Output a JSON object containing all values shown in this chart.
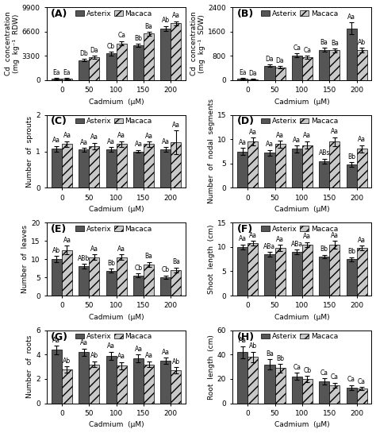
{
  "panels": [
    {
      "label": "(A)",
      "ylabel": "Cd  concentration\n(mg  kg⁻¹  RDW)",
      "xlabel": "Cadmium  (μM)",
      "ylim": [
        0,
        9900
      ],
      "yticks": [
        0,
        3300,
        6600,
        9900
      ],
      "categories": [
        0,
        50,
        100,
        150,
        200
      ],
      "asterix_values": [
        200,
        2700,
        3600,
        4700,
        7000
      ],
      "macaca_values": [
        200,
        3100,
        5000,
        6300,
        7700
      ],
      "asterix_errors": [
        80,
        150,
        250,
        200,
        350
      ],
      "macaca_errors": [
        80,
        180,
        300,
        280,
        300
      ],
      "asterix_labels": [
        "Ea",
        "Db",
        "Cb",
        "Bb",
        "Ab"
      ],
      "macaca_labels": [
        "Ea",
        "Da",
        "Ca",
        "Ba",
        "Aa"
      ]
    },
    {
      "label": "(B)",
      "ylabel": "Cd  concentration\n(mg  kg⁻¹  SDW)",
      "xlabel": "Cadmium  (μM)",
      "ylim": [
        0,
        2400
      ],
      "yticks": [
        0,
        800,
        1600,
        2400
      ],
      "categories": [
        0,
        50,
        100,
        150,
        200
      ],
      "asterix_values": [
        50,
        480,
        820,
        1000,
        1700
      ],
      "macaca_values": [
        30,
        420,
        760,
        980,
        980
      ],
      "asterix_errors": [
        15,
        40,
        60,
        70,
        200
      ],
      "macaca_errors": [
        10,
        35,
        50,
        60,
        80
      ],
      "asterix_labels": [
        "Ea",
        "Da",
        "Ca",
        "Ba",
        "Aa"
      ],
      "macaca_labels": [
        "Da",
        "Da",
        "Ca",
        "Ba",
        "Ab"
      ]
    },
    {
      "label": "(C)",
      "ylabel": "Number  of  sprouts",
      "xlabel": "Cadmium  (μM)",
      "ylim": [
        0,
        2
      ],
      "yticks": [
        0,
        1,
        2
      ],
      "categories": [
        0,
        50,
        100,
        150,
        200
      ],
      "asterix_values": [
        1.07,
        1.05,
        1.05,
        1.0,
        1.05
      ],
      "macaca_values": [
        1.2,
        1.15,
        1.2,
        1.2,
        1.25
      ],
      "asterix_errors": [
        0.08,
        0.05,
        0.07,
        0.04,
        0.07
      ],
      "macaca_errors": [
        0.08,
        0.09,
        0.08,
        0.07,
        0.32
      ],
      "asterix_labels": [
        "Aa",
        "Aa",
        "Aa",
        "Aa",
        "Aa"
      ],
      "macaca_labels": [
        "Aa",
        "Aa",
        "Aa",
        "Aa",
        "Aa"
      ]
    },
    {
      "label": "(D)",
      "ylabel": "Number  of  nodal  segments",
      "xlabel": "Cadmium  (μM)",
      "ylim": [
        0,
        15
      ],
      "yticks": [
        0,
        5,
        10,
        15
      ],
      "categories": [
        0,
        50,
        100,
        150,
        200
      ],
      "asterix_values": [
        7.5,
        7.2,
        8.0,
        5.5,
        4.8
      ],
      "macaca_values": [
        9.5,
        9.0,
        8.8,
        9.5,
        8.0
      ],
      "asterix_errors": [
        0.7,
        0.6,
        0.7,
        0.5,
        0.5
      ],
      "macaca_errors": [
        0.8,
        0.7,
        0.8,
        0.9,
        0.8
      ],
      "asterix_labels": [
        "Aa",
        "Aa",
        "Aa",
        "ABs",
        "Bb"
      ],
      "macaca_labels": [
        "Aa",
        "Aa",
        "Aa",
        "Aa",
        "Aa"
      ]
    },
    {
      "label": "(E)",
      "ylabel": "Number  of  leaves",
      "xlabel": "Cadmium  (μM)",
      "ylim": [
        0,
        20
      ],
      "yticks": [
        0,
        5,
        10,
        15,
        20
      ],
      "categories": [
        0,
        50,
        100,
        150,
        200
      ],
      "asterix_values": [
        10.0,
        8.0,
        6.8,
        5.5,
        5.0
      ],
      "macaca_values": [
        12.5,
        10.5,
        10.5,
        8.5,
        7.0
      ],
      "asterix_errors": [
        0.8,
        0.7,
        0.5,
        0.5,
        0.5
      ],
      "macaca_errors": [
        1.2,
        0.8,
        0.8,
        0.7,
        0.7
      ],
      "asterix_labels": [
        "Ab",
        "ABb",
        "Bb",
        "Cb",
        "Cb"
      ],
      "macaca_labels": [
        "Aa",
        "Aa",
        "Aa",
        "Ba",
        "Ba"
      ]
    },
    {
      "label": "(F)",
      "ylabel": "Shoot  length  (cm)",
      "xlabel": "Cadmium  (μM)",
      "ylim": [
        0,
        15
      ],
      "yticks": [
        0,
        5,
        10,
        15
      ],
      "categories": [
        0,
        50,
        100,
        150,
        200
      ],
      "asterix_values": [
        10.0,
        8.5,
        9.0,
        8.0,
        7.5
      ],
      "macaca_values": [
        10.8,
        9.8,
        10.5,
        10.5,
        9.8
      ],
      "asterix_errors": [
        0.5,
        0.5,
        0.5,
        0.4,
        0.4
      ],
      "macaca_errors": [
        0.5,
        0.6,
        0.5,
        0.8,
        0.5
      ],
      "asterix_labels": [
        "Aa",
        "ABa",
        "ABa",
        "Bb",
        "Bb"
      ],
      "macaca_labels": [
        "Aa",
        "Aa",
        "Aa",
        "Aa",
        "Aa"
      ]
    },
    {
      "label": "(G)",
      "ylabel": "Number  of  roots",
      "xlabel": "Cadmium  (μM)",
      "ylim": [
        0,
        6
      ],
      "yticks": [
        0,
        2,
        4,
        6
      ],
      "categories": [
        0,
        50,
        100,
        150,
        200
      ],
      "asterix_values": [
        4.4,
        4.2,
        3.9,
        3.7,
        3.5
      ],
      "macaca_values": [
        2.8,
        3.2,
        3.1,
        3.2,
        2.7
      ],
      "asterix_errors": [
        0.35,
        0.3,
        0.35,
        0.3,
        0.25
      ],
      "macaca_errors": [
        0.25,
        0.25,
        0.3,
        0.25,
        0.25
      ],
      "asterix_labels": [
        "Aa",
        "Aa",
        "Aa",
        "Aa",
        "Aa"
      ],
      "macaca_labels": [
        "Ab",
        "Ab",
        "Aa",
        "Aa",
        "Ab"
      ]
    },
    {
      "label": "(H)",
      "ylabel": "Root  length  (cm)",
      "xlabel": "Cadmium  (μM)",
      "ylim": [
        0,
        60
      ],
      "yticks": [
        0,
        20,
        40,
        60
      ],
      "categories": [
        0,
        50,
        100,
        150,
        200
      ],
      "asterix_values": [
        42.0,
        32.0,
        22.0,
        18.0,
        13.0
      ],
      "macaca_values": [
        38.0,
        29.0,
        20.0,
        15.0,
        12.0
      ],
      "asterix_errors": [
        5.0,
        4.0,
        3.0,
        2.5,
        2.0
      ],
      "macaca_errors": [
        4.5,
        3.5,
        2.5,
        2.0,
        1.5
      ],
      "asterix_labels": [
        "Aa",
        "Ba",
        "Ca",
        "Ca",
        "Ca"
      ],
      "macaca_labels": [
        "Ab",
        "Bb",
        "Cb",
        "Ca",
        "Ca"
      ]
    }
  ],
  "asterix_color": "#555555",
  "macaca_color": "#c8c8c8",
  "macaca_hatch": "///",
  "bar_width": 0.38,
  "tick_fontsize": 6.5,
  "axis_label_fontsize": 6.5,
  "annot_fontsize": 5.5,
  "legend_fontsize": 6.5,
  "panel_label_fontsize": 9
}
